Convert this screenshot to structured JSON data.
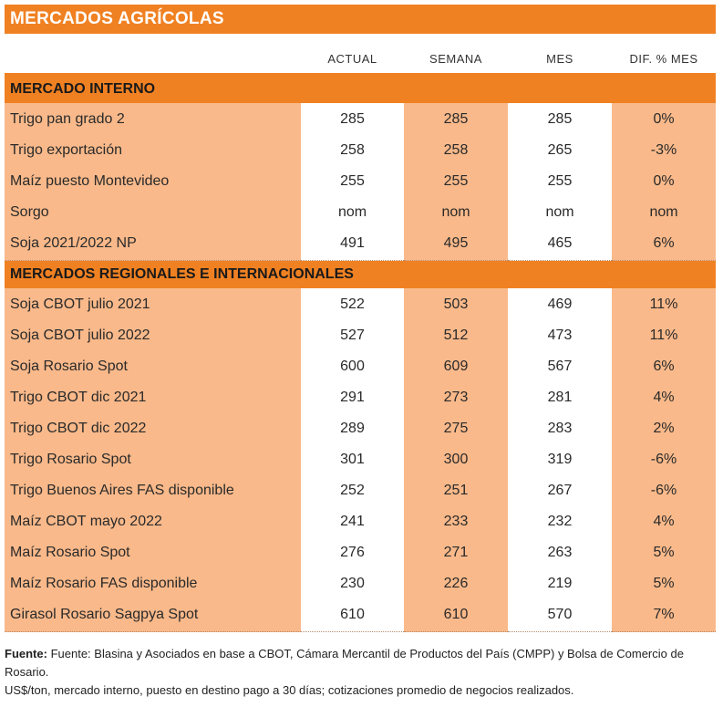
{
  "title": "MERCADOS AGRÍCOLAS",
  "columns": [
    "ACTUAL",
    "SEMANA",
    "MES",
    "DIF. % MES"
  ],
  "sections": [
    {
      "name": "MERCADO INTERNO",
      "rows": [
        [
          "Trigo pan grado 2",
          "285",
          "285",
          "285",
          "0%"
        ],
        [
          "Trigo exportación",
          "258",
          "258",
          "265",
          "-3%"
        ],
        [
          "Maíz puesto Montevideo",
          "255",
          "255",
          "255",
          "0%"
        ],
        [
          "Sorgo",
          "nom",
          "nom",
          "nom",
          "nom"
        ],
        [
          "Soja 2021/2022 NP",
          "491",
          "495",
          "465",
          "6%"
        ]
      ]
    },
    {
      "name": "MERCADOS REGIONALES E INTERNACIONALES",
      "rows": [
        [
          "Soja CBOT julio 2021",
          "522",
          "503",
          "469",
          "11%"
        ],
        [
          "Soja CBOT julio 2022",
          "527",
          "512",
          "473",
          "11%"
        ],
        [
          "Soja Rosario Spot",
          "600",
          "609",
          "567",
          "6%"
        ],
        [
          "Trigo CBOT dic 2021",
          "291",
          "273",
          "281",
          "4%"
        ],
        [
          "Trigo CBOT dic 2022",
          "289",
          "275",
          "283",
          "2%"
        ],
        [
          "Trigo Rosario Spot",
          "301",
          "300",
          "319",
          "-6%"
        ],
        [
          "Trigo Buenos Aires FAS disponible",
          "252",
          "251",
          "267",
          "-6%"
        ],
        [
          "Maíz CBOT mayo 2022",
          "241",
          "233",
          "232",
          "4%"
        ],
        [
          "Maíz Rosario Spot",
          "276",
          "271",
          "263",
          "5%"
        ],
        [
          "Maíz Rosario FAS disponible",
          "230",
          "226",
          "219",
          "5%"
        ],
        [
          "Girasol Rosario Sagpya Spot",
          "610",
          "610",
          "570",
          "7%"
        ]
      ]
    }
  ],
  "footer": {
    "source_label": "Fuente:",
    "source_text": "Fuente: Blasina y Asociados en base a CBOT, Cámara Mercantil de Productos del País (CMPP) y Bolsa de Comercio de Rosario.",
    "note": "US$/ton, mercado interno, puesto en destino pago a 30 días; cotizaciones promedio de negocios realizados."
  },
  "colors": {
    "orange": "#f08122",
    "light": "#f9b98a"
  }
}
